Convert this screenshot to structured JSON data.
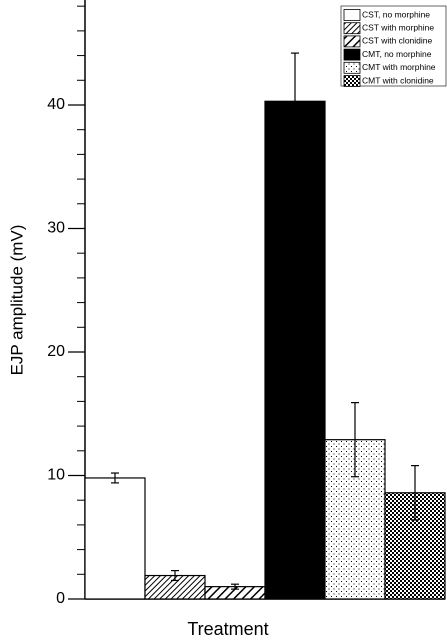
{
  "chart_data": {
    "type": "bar",
    "y_label": "EJP amplitude (mV)",
    "x_label": "Treatment",
    "ylim": [
      0,
      48.5
    ],
    "yticks": [
      0,
      10,
      20,
      30,
      40
    ],
    "yminorticks": [
      2,
      4,
      6,
      8,
      12,
      14,
      16,
      18,
      22,
      24,
      26,
      28,
      32,
      34,
      36,
      38,
      42,
      44,
      46,
      48
    ],
    "legend": "upper right",
    "series": [
      {
        "name": "CST, no morphine",
        "pattern": "none",
        "color": "#ffffff",
        "values": [
          9.8
        ],
        "errors": [
          0.4
        ]
      },
      {
        "name": "CST with morphine",
        "pattern": "hatch",
        "color": "#000000",
        "values": [
          1.9
        ],
        "errors": [
          0.4
        ]
      },
      {
        "name": "CST with clonidine",
        "pattern": "hatch-wide",
        "color": "#000000",
        "values": [
          1.0
        ],
        "errors": [
          0.2
        ]
      },
      {
        "name": "CMT, no morphine",
        "pattern": "solid",
        "color": "#000000",
        "values": [
          40.3
        ],
        "errors": [
          3.9
        ]
      },
      {
        "name": "CMT with morphine",
        "pattern": "dots",
        "color": "#000000",
        "values": [
          12.9
        ],
        "errors": [
          3.0
        ]
      },
      {
        "name": "CMT with clonidine",
        "pattern": "checker",
        "color": "#000000",
        "values": [
          8.6
        ],
        "errors": [
          2.2
        ]
      }
    ]
  }
}
